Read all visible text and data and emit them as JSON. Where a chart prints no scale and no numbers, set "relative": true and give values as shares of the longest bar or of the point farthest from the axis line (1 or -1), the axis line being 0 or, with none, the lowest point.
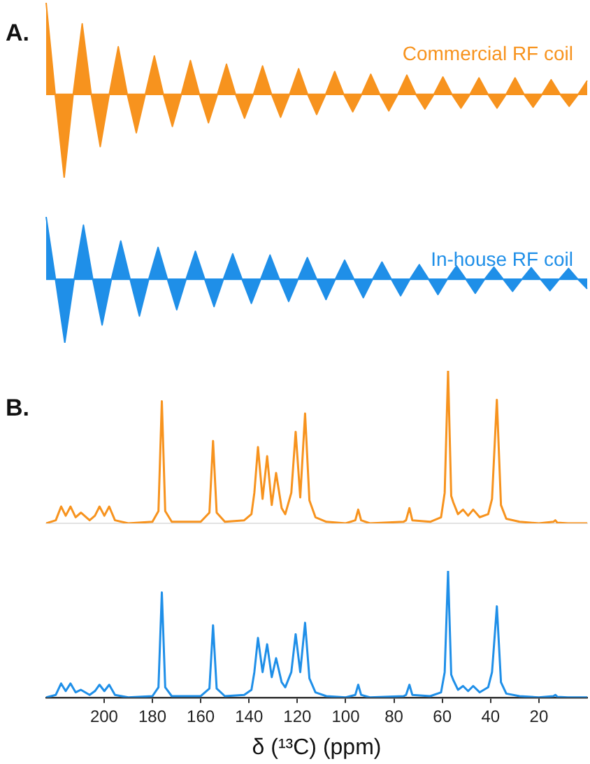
{
  "chart_data": [
    {
      "type": "area",
      "title": "A.",
      "relative": true,
      "tick_labels": false,
      "ref_lines": [
        {
          "axis": "y",
          "value": 0,
          "color": "#f7931e"
        }
      ],
      "categories": [
        null,
        null,
        null,
        null,
        null,
        null,
        null,
        null,
        null,
        null,
        null,
        null,
        null,
        null,
        null,
        null,
        null,
        null,
        null,
        null,
        null,
        null,
        null,
        null,
        null,
        null,
        null,
        null,
        null,
        null,
        null,
        null,
        null,
        null,
        null,
        null,
        null,
        null,
        null,
        null,
        null,
        null,
        null,
        null,
        null,
        null,
        null,
        null,
        null,
        null,
        null,
        null,
        null,
        null,
        null,
        null,
        null,
        null,
        null,
        null,
        null
      ],
      "series": [
        {
          "name": "Commercial RF coil",
          "color": "#f7931e",
          "values": [
            1.0,
            0,
            -0.91,
            0,
            0.77,
            0,
            -0.57,
            0,
            0.52,
            0,
            -0.42,
            0,
            0.42,
            0,
            -0.35,
            0,
            0.37,
            0,
            -0.31,
            0,
            0.33,
            0,
            -0.26,
            0,
            0.31,
            0,
            -0.25,
            0,
            0.28,
            0,
            -0.22,
            0,
            0.25,
            0,
            -0.19,
            0,
            0.22,
            0,
            -0.18,
            0,
            0.21,
            0,
            -0.16,
            0,
            0.19,
            0,
            -0.15,
            0,
            0.18,
            0,
            -0.15,
            0,
            0.18,
            0,
            -0.14,
            0,
            0.16,
            0,
            -0.13,
            0,
            0.15
          ]
        }
      ]
    },
    {
      "type": "area",
      "relative": true,
      "tick_labels": false,
      "ref_lines": [
        {
          "axis": "y",
          "value": 0,
          "color": "#1f8fe8"
        }
      ],
      "categories": [
        null,
        null,
        null,
        null,
        null,
        null,
        null,
        null,
        null,
        null,
        null,
        null,
        null,
        null,
        null,
        null,
        null,
        null,
        null,
        null,
        null,
        null,
        null,
        null,
        null,
        null,
        null,
        null,
        null,
        null,
        null,
        null,
        null,
        null,
        null,
        null,
        null,
        null,
        null,
        null,
        null,
        null,
        null,
        null,
        null,
        null,
        null,
        null,
        null,
        null,
        null,
        null,
        null,
        null,
        null,
        null,
        null,
        null,
        null
      ],
      "series": [
        {
          "name": "In-house RF coil",
          "color": "#1f8fe8",
          "values": [
            0.98,
            0,
            -1.0,
            0,
            0.85,
            0,
            -0.72,
            0,
            0.6,
            0,
            -0.58,
            0,
            0.5,
            0,
            -0.48,
            0,
            0.44,
            0,
            -0.43,
            0,
            0.4,
            0,
            -0.38,
            0,
            0.38,
            0,
            -0.35,
            0,
            0.34,
            0,
            -0.32,
            0,
            0.3,
            0,
            -0.29,
            0,
            0.27,
            0,
            -0.26,
            0,
            0.23,
            0,
            -0.24,
            0,
            0.21,
            0,
            -0.22,
            0,
            0.19,
            0,
            -0.19,
            0,
            0.18,
            0,
            -0.18,
            0,
            0.17,
            0,
            -0.15
          ]
        }
      ]
    },
    {
      "type": "line",
      "title": "B.",
      "relative": true,
      "tick_labels": false,
      "xlim": [
        224,
        0
      ],
      "x": [
        224,
        220,
        217.8,
        215.9,
        213.9,
        211.8,
        209.6,
        206,
        203.8,
        201.9,
        199.9,
        197.9,
        195.5,
        190,
        180,
        177.5,
        176.1,
        174.7,
        172,
        160,
        156.4,
        154.9,
        153.4,
        150,
        142,
        139,
        137.8,
        136.3,
        134.4,
        132.5,
        130.6,
        128.8,
        126.5,
        125,
        122.5,
        120.7,
        118.8,
        116.8,
        115,
        112.5,
        108,
        100,
        96,
        94.8,
        93.6,
        90,
        76,
        75,
        73.6,
        72.4,
        65,
        60.5,
        59,
        57.6,
        56.3,
        55.5,
        53.5,
        51.4,
        49.3,
        47.2,
        44.5,
        41,
        39.4,
        37.4,
        35.7,
        33.5,
        28,
        20,
        14,
        13.2,
        12.4,
        8,
        0
      ],
      "series": [
        {
          "color": "#f7931e",
          "values": [
            0,
            0.02,
            0.11,
            0.05,
            0.11,
            0.04,
            0.07,
            0.02,
            0.05,
            0.11,
            0.05,
            0.11,
            0.02,
            0,
            0.01,
            0.08,
            0.8,
            0.08,
            0.01,
            0.01,
            0.07,
            0.54,
            0.07,
            0.01,
            0.02,
            0.06,
            0.2,
            0.5,
            0.16,
            0.44,
            0.12,
            0.33,
            0.1,
            0.06,
            0.2,
            0.6,
            0.17,
            0.72,
            0.15,
            0.04,
            0.01,
            0,
            0.02,
            0.09,
            0.02,
            0,
            0.01,
            0.02,
            0.1,
            0.02,
            0.01,
            0.04,
            0.2,
            1.0,
            0.18,
            0.14,
            0.06,
            0.09,
            0.05,
            0.09,
            0.04,
            0.06,
            0.16,
            0.81,
            0.12,
            0.03,
            0.01,
            0,
            0.01,
            0.02,
            0.005,
            0,
            0
          ]
        }
      ]
    },
    {
      "type": "line",
      "relative": true,
      "tick_labels": "x",
      "xlabel": "δ (¹³C) (ppm)",
      "xlim": [
        224,
        0
      ],
      "xticks": [
        200,
        180,
        160,
        140,
        120,
        100,
        80,
        60,
        40,
        20
      ],
      "x": [
        224,
        220,
        217.8,
        215.9,
        213.9,
        211.8,
        209.6,
        206,
        203.8,
        201.9,
        199.9,
        197.9,
        195.5,
        190,
        180,
        177.5,
        176.1,
        174.7,
        172,
        160,
        156.4,
        154.9,
        153.4,
        150,
        142,
        139,
        137.8,
        136.3,
        134.4,
        132.5,
        130.6,
        128.8,
        126.5,
        125,
        122.5,
        120.7,
        118.8,
        116.8,
        115,
        112.5,
        108,
        100,
        96,
        94.8,
        93.6,
        90,
        76,
        75,
        73.6,
        72.4,
        65,
        60.5,
        59,
        57.6,
        56.3,
        55.5,
        53.5,
        51.4,
        49.3,
        47.2,
        44.5,
        41,
        39.4,
        37.4,
        35.7,
        33.5,
        28,
        20,
        14,
        13.2,
        12.4,
        8,
        0
      ],
      "series": [
        {
          "color": "#1f8fe8",
          "values": [
            0,
            0.02,
            0.11,
            0.05,
            0.11,
            0.04,
            0.06,
            0.02,
            0.05,
            0.1,
            0.05,
            0.1,
            0.02,
            0,
            0.01,
            0.08,
            0.83,
            0.08,
            0.01,
            0.01,
            0.07,
            0.57,
            0.07,
            0.01,
            0.02,
            0.06,
            0.2,
            0.47,
            0.2,
            0.42,
            0.16,
            0.31,
            0.12,
            0.08,
            0.2,
            0.5,
            0.2,
            0.59,
            0.15,
            0.04,
            0.01,
            0,
            0.02,
            0.1,
            0.02,
            0,
            0.01,
            0.02,
            0.1,
            0.02,
            0.01,
            0.04,
            0.2,
            1.0,
            0.18,
            0.14,
            0.06,
            0.09,
            0.05,
            0.09,
            0.04,
            0.08,
            0.2,
            0.72,
            0.12,
            0.03,
            0.01,
            0,
            0.01,
            0.02,
            0.005,
            0,
            0
          ]
        }
      ]
    }
  ]
}
